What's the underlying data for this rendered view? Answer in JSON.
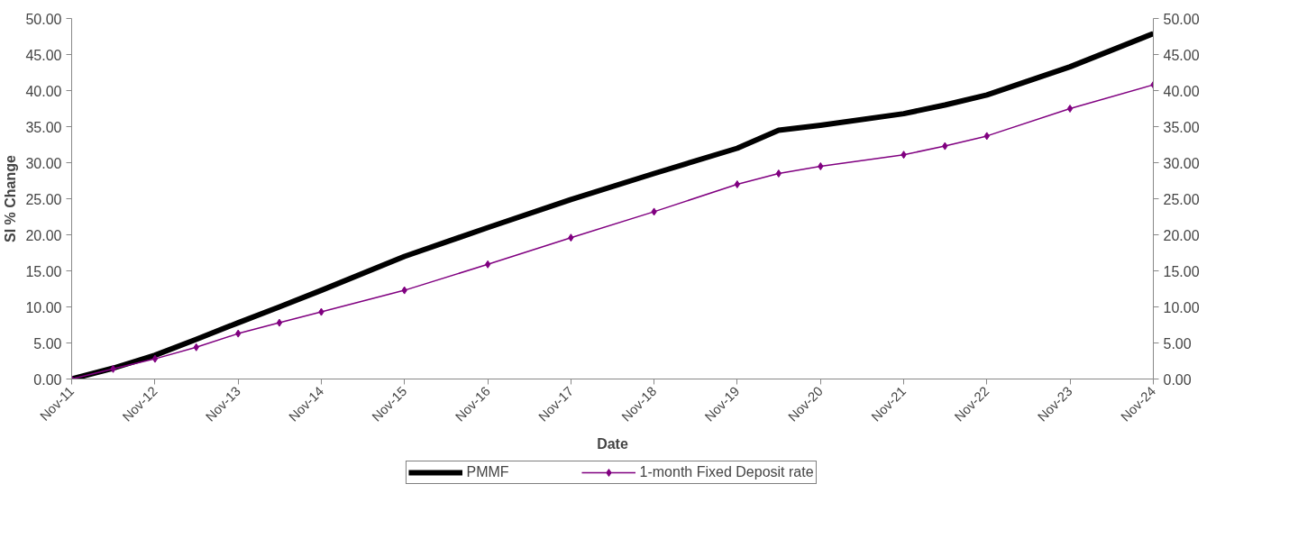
{
  "chart_data": {
    "type": "line",
    "xlabel": "Date",
    "ylabel": "SI % Change",
    "x": [
      "2011-11",
      "2012-05",
      "2012-11",
      "2013-05",
      "2013-11",
      "2014-05",
      "2014-11",
      "2015-11",
      "2016-11",
      "2017-11",
      "2018-11",
      "2019-11",
      "2020-05",
      "2020-11",
      "2021-11",
      "2022-05",
      "2022-11",
      "2023-11",
      "2024-11"
    ],
    "series": [
      {
        "name": "PMMF",
        "color": "#000000",
        "marker": "none",
        "values": [
          0,
          1.5,
          3.3,
          5.5,
          7.8,
          10.0,
          12.3,
          17.0,
          21.0,
          24.9,
          28.5,
          32.0,
          34.5,
          35.2,
          36.8,
          38.0,
          39.4,
          43.3,
          47.9
        ]
      },
      {
        "name": "1-month Fixed Deposit rate",
        "color": "#800080",
        "marker": "diamond",
        "values": [
          0,
          1.4,
          2.8,
          4.4,
          6.3,
          7.8,
          9.3,
          12.3,
          15.9,
          19.6,
          23.2,
          27.0,
          28.5,
          29.5,
          31.1,
          32.3,
          33.7,
          37.5,
          40.8
        ]
      }
    ],
    "xlim": [
      "2011-11",
      "2024-11"
    ],
    "xticks": [
      {
        "value": "2011-11",
        "label": "Nov-11"
      },
      {
        "value": "2012-11",
        "label": "Nov-12"
      },
      {
        "value": "2013-11",
        "label": "Nov-13"
      },
      {
        "value": "2014-11",
        "label": "Nov-14"
      },
      {
        "value": "2015-11",
        "label": "Nov-15"
      },
      {
        "value": "2016-11",
        "label": "Nov-16"
      },
      {
        "value": "2017-11",
        "label": "Nov-17"
      },
      {
        "value": "2018-11",
        "label": "Nov-18"
      },
      {
        "value": "2019-11",
        "label": "Nov-19"
      },
      {
        "value": "2020-11",
        "label": "Nov-20"
      },
      {
        "value": "2021-11",
        "label": "Nov-21"
      },
      {
        "value": "2022-11",
        "label": "Nov-22"
      },
      {
        "value": "2023-11",
        "label": "Nov-23"
      },
      {
        "value": "2024-11",
        "label": "Nov-24"
      }
    ],
    "ylim": [
      0,
      50
    ],
    "yticks": [
      {
        "value": 0,
        "label": "0.00"
      },
      {
        "value": 5,
        "label": "5.00"
      },
      {
        "value": 10,
        "label": "10.00"
      },
      {
        "value": 15,
        "label": "15.00"
      },
      {
        "value": 20,
        "label": "20.00"
      },
      {
        "value": 25,
        "label": "25.00"
      },
      {
        "value": 30,
        "label": "30.00"
      },
      {
        "value": 35,
        "label": "35.00"
      },
      {
        "value": 40,
        "label": "40.00"
      },
      {
        "value": 45,
        "label": "45.00"
      },
      {
        "value": 50,
        "label": "50.00"
      }
    ],
    "y2lim": [
      0,
      50
    ],
    "y2ticks": [
      {
        "value": 0,
        "label": "0.00"
      },
      {
        "value": 5,
        "label": "5.00"
      },
      {
        "value": 10,
        "label": "10.00"
      },
      {
        "value": 15,
        "label": "15.00"
      },
      {
        "value": 20,
        "label": "20.00"
      },
      {
        "value": 25,
        "label": "25.00"
      },
      {
        "value": 30,
        "label": "30.00"
      },
      {
        "value": 35,
        "label": "35.00"
      },
      {
        "value": 40,
        "label": "40.00"
      },
      {
        "value": 45,
        "label": "45.00"
      },
      {
        "value": 50,
        "label": "50.00"
      }
    ],
    "grid": false,
    "legend": "bottom",
    "line_style": "solid"
  }
}
